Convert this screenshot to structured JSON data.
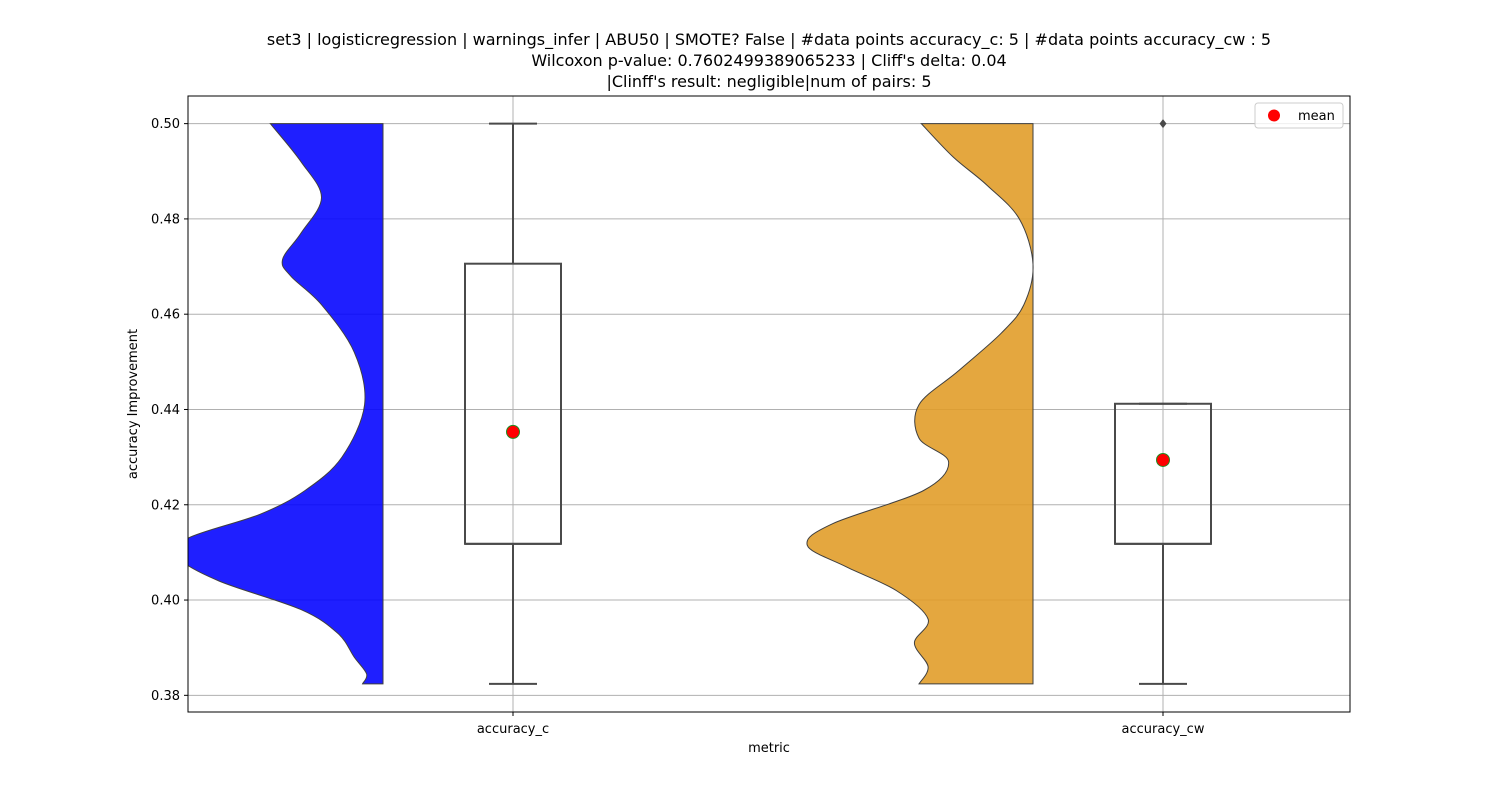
{
  "chart_data": {
    "type": "violin+box",
    "title_lines": [
      "set3 | logisticregression | warnings_infer | ABU50 | SMOTE? False | #data points accuracy_c: 5 | #data points accuracy_cw : 5",
      "Wilcoxon p-value: 0.7602499389065233 | Cliff's delta: 0.04",
      "|Clinff's result: negligible|num of pairs: 5"
    ],
    "xlabel": "metric",
    "ylabel": "accuracy Improvement",
    "categories": [
      "accuracy_c",
      "accuracy_cw"
    ],
    "ylim": [
      0.3765,
      0.5058
    ],
    "yticks": [
      0.38,
      0.4,
      0.42,
      0.44,
      0.46,
      0.48,
      0.5
    ],
    "ytick_labels": [
      "0.38",
      "0.40",
      "0.42",
      "0.44",
      "0.46",
      "0.48",
      "0.50"
    ],
    "grid": true,
    "legend": {
      "placement": "top-right",
      "entries": [
        {
          "label": "mean",
          "color": "#ff0000"
        }
      ]
    },
    "violins": [
      {
        "category": "accuracy_c",
        "color": "#0000ff",
        "profile": [
          [
            0.3824,
            0.1
          ],
          [
            0.3845,
            0.08
          ],
          [
            0.388,
            0.14
          ],
          [
            0.393,
            0.22
          ],
          [
            0.398,
            0.4
          ],
          [
            0.404,
            0.8
          ],
          [
            0.409,
            1.0
          ],
          [
            0.413,
            0.95
          ],
          [
            0.418,
            0.6
          ],
          [
            0.423,
            0.38
          ],
          [
            0.43,
            0.2
          ],
          [
            0.441,
            0.09
          ],
          [
            0.452,
            0.14
          ],
          [
            0.462,
            0.3
          ],
          [
            0.468,
            0.45
          ],
          [
            0.4715,
            0.49
          ],
          [
            0.477,
            0.4
          ],
          [
            0.4845,
            0.3
          ],
          [
            0.492,
            0.4
          ],
          [
            0.5,
            0.55
          ]
        ]
      },
      {
        "category": "accuracy_cw",
        "color": "#e09b24",
        "profile": [
          [
            0.3824,
            0.5
          ],
          [
            0.386,
            0.46
          ],
          [
            0.391,
            0.52
          ],
          [
            0.396,
            0.46
          ],
          [
            0.402,
            0.6
          ],
          [
            0.407,
            0.82
          ],
          [
            0.4115,
            0.99
          ],
          [
            0.416,
            0.88
          ],
          [
            0.423,
            0.48
          ],
          [
            0.429,
            0.37
          ],
          [
            0.434,
            0.5
          ],
          [
            0.441,
            0.5
          ],
          [
            0.448,
            0.33
          ],
          [
            0.456,
            0.14
          ],
          [
            0.462,
            0.04
          ],
          [
            0.4705,
            0.0
          ],
          [
            0.48,
            0.06
          ],
          [
            0.487,
            0.2
          ],
          [
            0.493,
            0.35
          ],
          [
            0.5,
            0.49
          ]
        ]
      }
    ],
    "boxes": [
      {
        "category": "accuracy_c",
        "whisker_low": 0.3824,
        "q1": 0.4118,
        "median": 0.4118,
        "q3": 0.4706,
        "whisker_high": 0.5,
        "outliers": [],
        "mean": 0.4353
      },
      {
        "category": "accuracy_cw",
        "whisker_low": 0.3824,
        "q1": 0.4118,
        "median": 0.4118,
        "q3": 0.4412,
        "whisker_high": 0.4412,
        "outliers": [
          0.5
        ],
        "mean": 0.4294
      }
    ]
  }
}
